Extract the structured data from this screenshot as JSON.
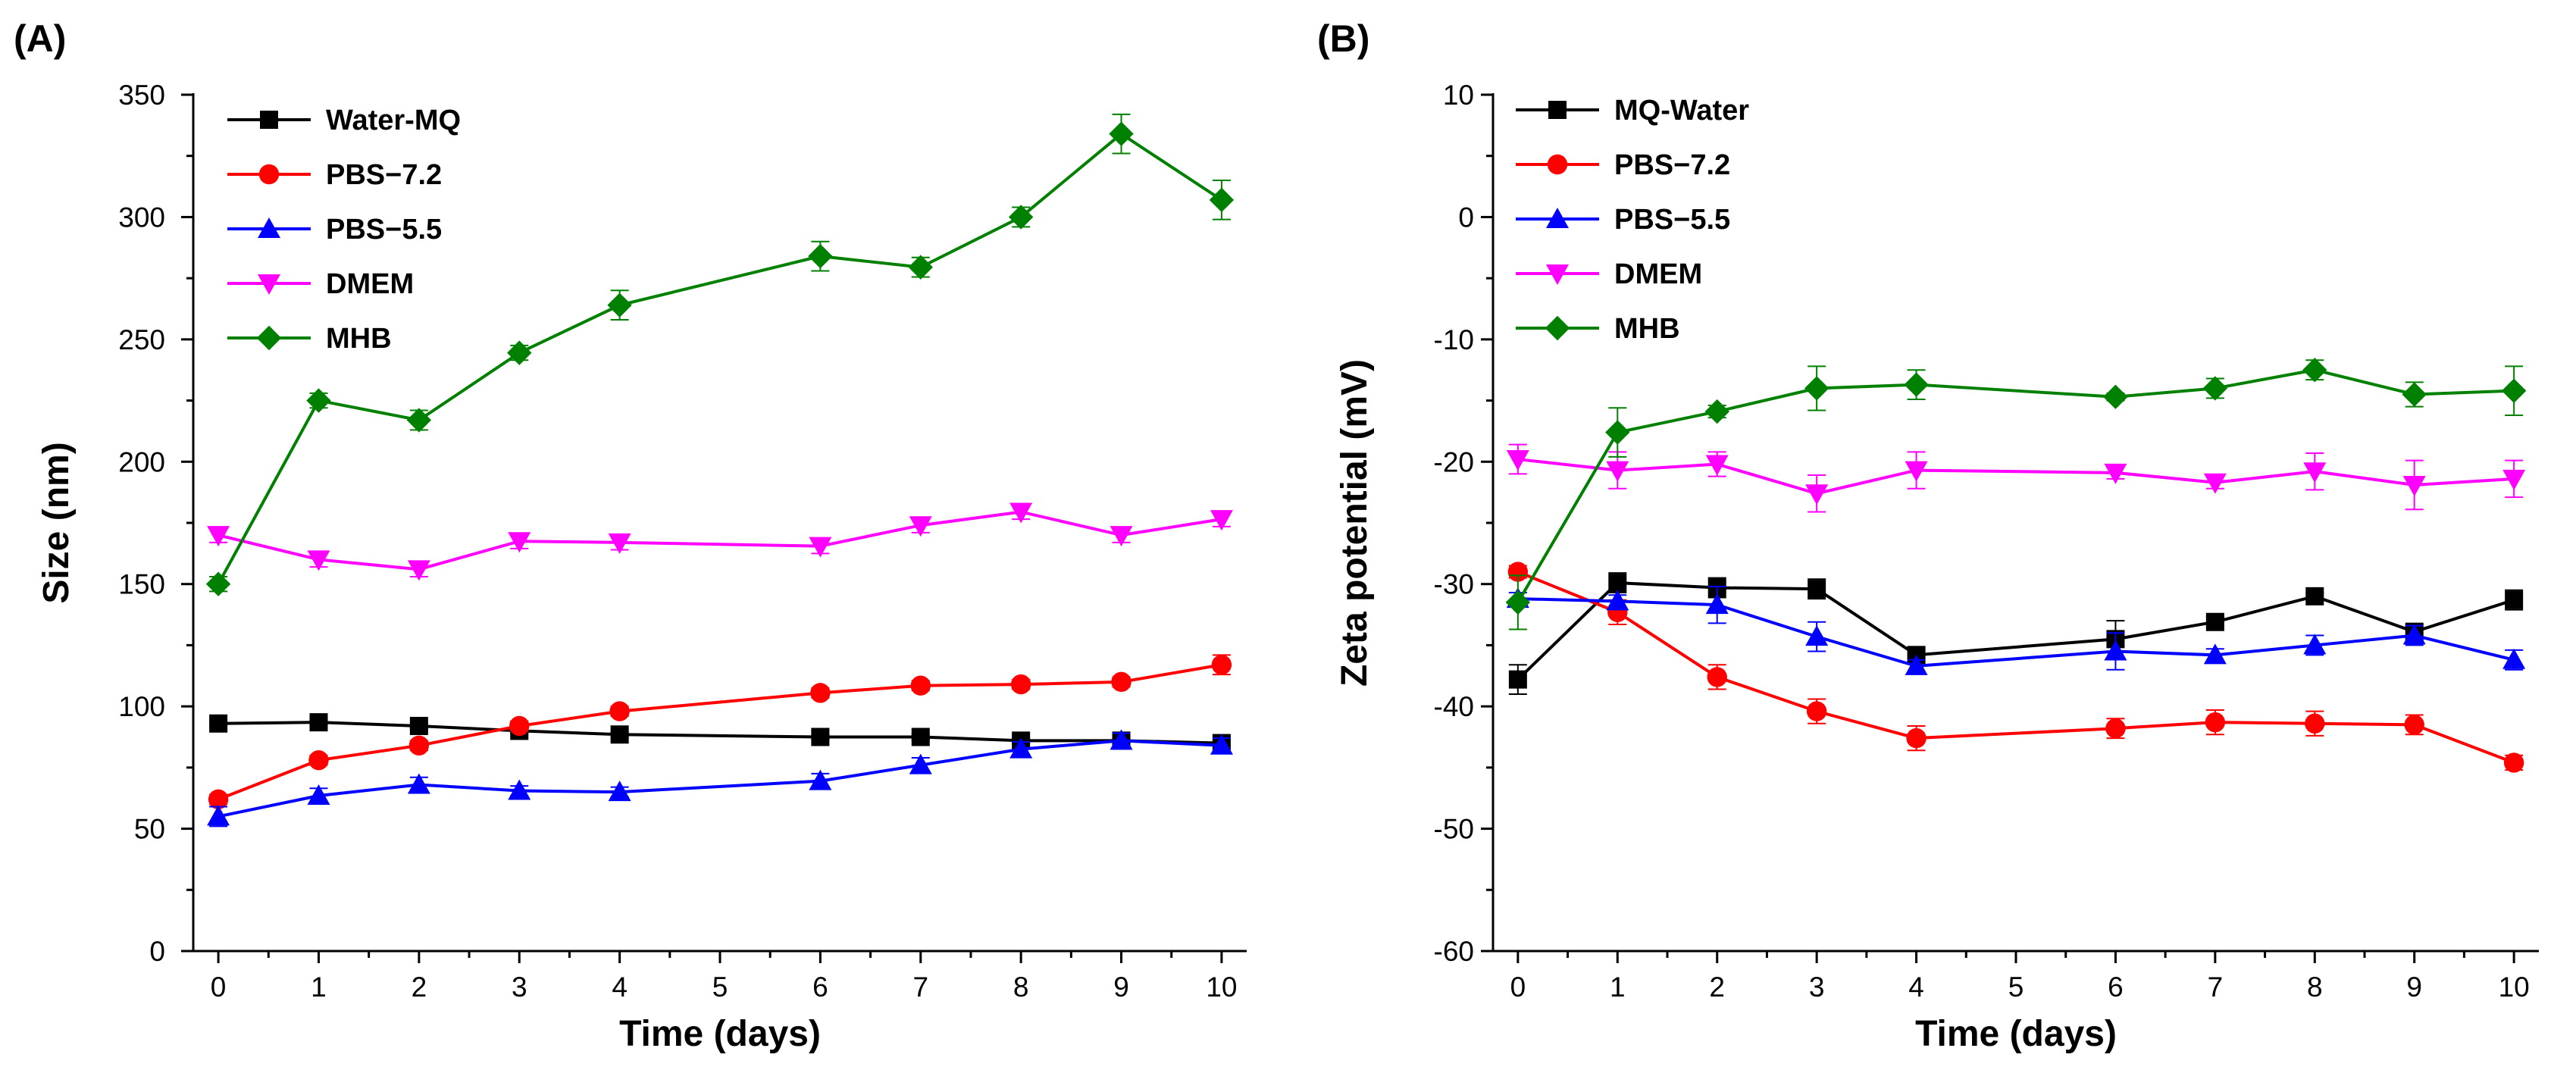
{
  "chart_data": [
    {
      "type": "line",
      "panel_label": "(A)",
      "xlabel": "Time (days)",
      "ylabel": "Size (nm)",
      "xlim": [
        -0.25,
        10.25
      ],
      "ylim": [
        0,
        350
      ],
      "x_ticks": [
        0,
        1,
        2,
        3,
        4,
        5,
        6,
        7,
        8,
        9,
        10
      ],
      "x_tick_labels": [
        "0",
        "1",
        "2",
        "3",
        "4",
        "5",
        "6",
        "7",
        "8",
        "9",
        "10"
      ],
      "y_ticks": [
        0,
        50,
        100,
        150,
        200,
        250,
        300,
        350
      ],
      "y_tick_labels": [
        "0",
        "50",
        "100",
        "150",
        "200",
        "250",
        "300",
        "350"
      ],
      "grid": false,
      "legend_position": "top-left",
      "x": [
        0,
        1,
        2,
        3,
        4,
        6,
        7,
        8,
        9,
        10
      ],
      "series": [
        {
          "name": "Water-MQ",
          "color": "#000000",
          "marker": "square",
          "values": [
            93,
            93.5,
            92,
            90,
            88.5,
            87.5,
            87.5,
            86,
            86,
            85
          ],
          "errors": [
            1,
            1,
            1,
            1,
            1,
            1,
            1,
            1,
            1,
            1
          ]
        },
        {
          "name": "PBS−7.2",
          "color": "#ff0000",
          "marker": "circle",
          "values": [
            62,
            78,
            84,
            92,
            98,
            105.5,
            108.5,
            109,
            110,
            117
          ],
          "errors": [
            2,
            2,
            2,
            2,
            2,
            2,
            2,
            2,
            2,
            4
          ]
        },
        {
          "name": "PBS−5.5",
          "color": "#0000ff",
          "marker": "triangle-up",
          "values": [
            55,
            63.5,
            68,
            65.5,
            65,
            69.5,
            76,
            82.5,
            86,
            84
          ],
          "errors": [
            4,
            3,
            3,
            2,
            2,
            3,
            3,
            3,
            3,
            3
          ]
        },
        {
          "name": "DMEM",
          "color": "#ff00ff",
          "marker": "triangle-down",
          "values": [
            170,
            160,
            156,
            167.5,
            167,
            165.5,
            174,
            179.5,
            170,
            176.5
          ],
          "errors": [
            3,
            3,
            3,
            3,
            3,
            3,
            3,
            3,
            3,
            3
          ]
        },
        {
          "name": "MHB",
          "color": "#008000",
          "marker": "diamond",
          "values": [
            150,
            225,
            217,
            244.5,
            264,
            284,
            279.5,
            300,
            334,
            307
          ],
          "errors": [
            3,
            3,
            4,
            3,
            6,
            6,
            4,
            4,
            8,
            8
          ]
        }
      ]
    },
    {
      "type": "line",
      "panel_label": "(B)",
      "xlabel": "Time (days)",
      "ylabel": "Zeta potential (mV)",
      "xlim": [
        -0.25,
        10.25
      ],
      "ylim": [
        -60,
        10
      ],
      "x_ticks": [
        0,
        1,
        2,
        3,
        4,
        5,
        6,
        7,
        8,
        9,
        10
      ],
      "x_tick_labels": [
        "0",
        "1",
        "2",
        "3",
        "4",
        "5",
        "6",
        "7",
        "8",
        "9",
        "10"
      ],
      "y_ticks": [
        -60,
        -50,
        -40,
        -30,
        -20,
        -10,
        0,
        10
      ],
      "y_tick_labels": [
        "-60",
        "-50",
        "-40",
        "-30",
        "-20",
        "-10",
        "0",
        "10"
      ],
      "grid": false,
      "legend_position": "top-left",
      "x": [
        0,
        1,
        2,
        3,
        4,
        6,
        7,
        8,
        9,
        10
      ],
      "series": [
        {
          "name": "MQ-Water",
          "color": "#000000",
          "marker": "square",
          "values": [
            -37.8,
            -29.9,
            -30.3,
            -30.4,
            -35.8,
            -34.5,
            -33.1,
            -31,
            -33.9,
            -31.3
          ],
          "errors": [
            1.2,
            0.8,
            0.8,
            0.8,
            0.4,
            1.5,
            0.4,
            0.3,
            0.5,
            0.8
          ]
        },
        {
          "name": "PBS−7.2",
          "color": "#ff0000",
          "marker": "circle",
          "values": [
            -29,
            -32.3,
            -37.6,
            -40.4,
            -42.6,
            -41.8,
            -41.3,
            -41.4,
            -41.5,
            -44.6
          ],
          "errors": [
            0.5,
            1,
            1,
            1,
            1,
            0.8,
            1,
            1,
            0.8,
            0.6
          ]
        },
        {
          "name": "PBS−5.5",
          "color": "#0000ff",
          "marker": "triangle-up",
          "values": [
            -31.2,
            -31.4,
            -31.7,
            -34.3,
            -36.7,
            -35.5,
            -35.8,
            -35,
            -34.2,
            -36.2
          ],
          "errors": [
            0.5,
            0.5,
            1.5,
            1.2,
            0.5,
            1.5,
            0.5,
            0.8,
            0.8,
            0.8
          ]
        },
        {
          "name": "DMEM",
          "color": "#ff00ff",
          "marker": "triangle-down",
          "values": [
            -19.8,
            -20.7,
            -20.2,
            -22.6,
            -20.7,
            -20.9,
            -21.7,
            -20.8,
            -21.9,
            -21.4
          ],
          "errors": [
            1.2,
            1.5,
            1,
            1.5,
            1.5,
            0.5,
            0.5,
            1.5,
            2,
            1.5
          ]
        },
        {
          "name": "MHB",
          "color": "#008000",
          "marker": "diamond",
          "values": [
            -31.5,
            -17.6,
            -15.9,
            -14,
            -13.7,
            -14.7,
            -14,
            -12.5,
            -14.5,
            -14.2
          ],
          "errors": [
            2.2,
            2,
            0.5,
            1.8,
            1.2,
            0.3,
            0.8,
            0.8,
            1,
            2
          ]
        }
      ]
    }
  ]
}
